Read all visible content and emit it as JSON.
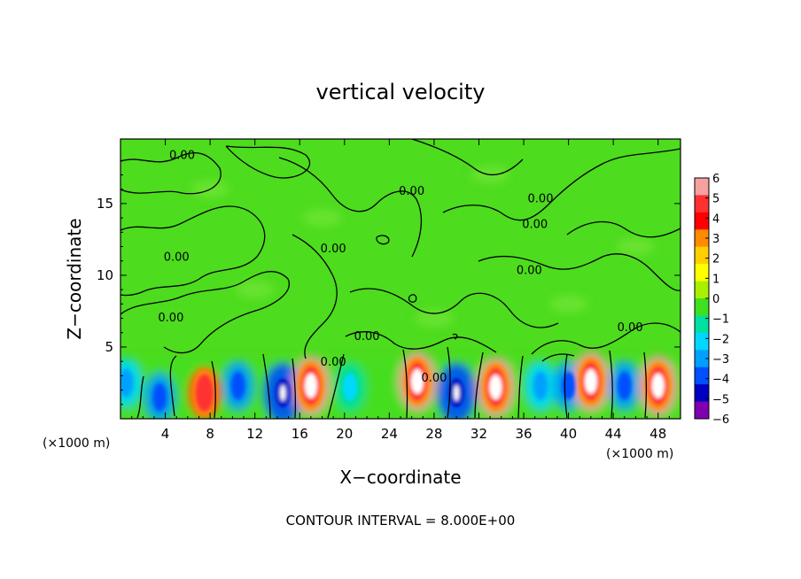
{
  "chart_data": {
    "type": "heatmap",
    "title": "vertical velocity",
    "xlabel": "X−coordinate",
    "ylabel": "Z−coordinate",
    "x_unit": "(×1000 m)",
    "y_unit": "(×1000 m)",
    "footnote": "CONTOUR INTERVAL = 8.000E+00",
    "xlim": [
      0,
      50
    ],
    "ylim": [
      0,
      19.5
    ],
    "xticks": [
      4,
      8,
      12,
      16,
      20,
      24,
      28,
      32,
      36,
      40,
      44,
      48
    ],
    "yticks": [
      5,
      10,
      15
    ],
    "colorbar": {
      "ticks": [
        6,
        5,
        4,
        3,
        2,
        1,
        0,
        -1,
        -2,
        -3,
        -4,
        -5,
        -6
      ],
      "colors": [
        "#f7a0a0",
        "#ff3030",
        "#ff0000",
        "#ff8c00",
        "#ffd000",
        "#ffff00",
        "#a8f000",
        "#40e020",
        "#00e0a0",
        "#00d8ff",
        "#00a0ff",
        "#0050ff",
        "#0000c0",
        "#8000b0"
      ]
    },
    "contour_labels": [
      {
        "x": 5.5,
        "y": 18.1,
        "text": "0.00"
      },
      {
        "x": 26.0,
        "y": 15.6,
        "text": "0.00"
      },
      {
        "x": 37.5,
        "y": 15.1,
        "text": "0.00"
      },
      {
        "x": 37.0,
        "y": 13.3,
        "text": "0.00"
      },
      {
        "x": 19.0,
        "y": 11.6,
        "text": "0.00"
      },
      {
        "x": 5.0,
        "y": 11.0,
        "text": "0.00"
      },
      {
        "x": 36.5,
        "y": 10.1,
        "text": "0.00"
      },
      {
        "x": 4.5,
        "y": 6.8,
        "text": "0.00"
      },
      {
        "x": 22.0,
        "y": 5.5,
        "text": "0.00"
      },
      {
        "x": 45.5,
        "y": 6.1,
        "text": "0.00"
      },
      {
        "x": 19.0,
        "y": 3.7,
        "text": "0.00"
      },
      {
        "x": 28.0,
        "y": 2.6,
        "text": "0.00"
      }
    ],
    "cells": [
      {
        "x": 0.5,
        "y": 2.5,
        "value": -3
      },
      {
        "x": 3.5,
        "y": 1.5,
        "value": -4
      },
      {
        "x": 7.5,
        "y": 1.8,
        "value": 4
      },
      {
        "x": 10.5,
        "y": 2.3,
        "value": -4
      },
      {
        "x": 14.5,
        "y": 1.8,
        "value": -5
      },
      {
        "x": 17.0,
        "y": 2.3,
        "value": 6
      },
      {
        "x": 20.5,
        "y": 2.2,
        "value": -2
      },
      {
        "x": 26.5,
        "y": 2.6,
        "value": 6
      },
      {
        "x": 30.0,
        "y": 1.8,
        "value": -5
      },
      {
        "x": 33.5,
        "y": 2.2,
        "value": 6
      },
      {
        "x": 37.5,
        "y": 2.3,
        "value": -3
      },
      {
        "x": 40.0,
        "y": 2.3,
        "value": -4
      },
      {
        "x": 42.0,
        "y": 2.6,
        "value": 6
      },
      {
        "x": 45.0,
        "y": 2.3,
        "value": -4
      },
      {
        "x": 48.0,
        "y": 2.3,
        "value": 6
      }
    ]
  }
}
